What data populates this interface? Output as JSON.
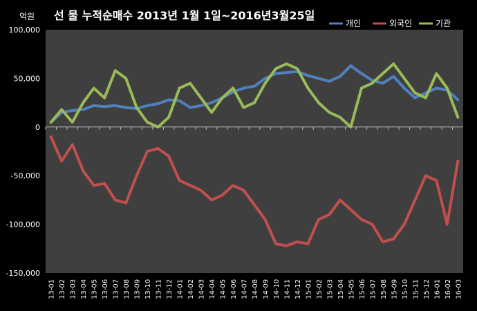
{
  "chart_data": {
    "type": "line",
    "title": "선 물 누적순매수 2013년 1월 1일~2016년3월25일",
    "ylabel": "억원",
    "xlabel": "",
    "ylim": [
      -150000,
      100000
    ],
    "yticks": [
      100000,
      50000,
      0,
      -50000,
      -100000,
      -150000
    ],
    "ytick_labels": [
      "100,000",
      "50,000",
      "0",
      "-50,000",
      "-100,000",
      "-150,000"
    ],
    "x_tick_labels": [
      "13-01",
      "13-02",
      "13-03",
      "13-04",
      "13-05",
      "13-06",
      "13-07",
      "13-08",
      "13-09",
      "13-10",
      "13-11",
      "13-12",
      "14-01",
      "14-02",
      "14-03",
      "14-04",
      "14-05",
      "14-06",
      "14-07",
      "14-08",
      "14-09",
      "14-10",
      "14-11",
      "14-12",
      "15-01",
      "15-02",
      "15-03",
      "15-04",
      "15-05",
      "15-06",
      "15-07",
      "15-08",
      "15-09",
      "15-10",
      "15-11",
      "15-12",
      "16-01",
      "16-02",
      "16-03"
    ],
    "grid": "none",
    "legend_position": "top-right",
    "series": [
      {
        "name": "개인",
        "color": "#4F81BD",
        "values": [
          5000,
          15000,
          17000,
          18000,
          22000,
          21000,
          22000,
          20000,
          19000,
          22000,
          24000,
          28000,
          27000,
          20000,
          22000,
          25000,
          30000,
          36000,
          40000,
          42000,
          50000,
          55000,
          56000,
          57000,
          53000,
          50000,
          47000,
          52000,
          63000,
          55000,
          48000,
          45000,
          52000,
          40000,
          30000,
          35000,
          40000,
          38000,
          28000
        ]
      },
      {
        "name": "외국인",
        "color": "#C0504D",
        "values": [
          -10000,
          -35000,
          -18000,
          -45000,
          -60000,
          -58000,
          -75000,
          -78000,
          -50000,
          -25000,
          -22000,
          -30000,
          -55000,
          -60000,
          -65000,
          -75000,
          -70000,
          -60000,
          -65000,
          -80000,
          -95000,
          -120000,
          -122000,
          -118000,
          -120000,
          -95000,
          -90000,
          -75000,
          -85000,
          -95000,
          -100000,
          -118000,
          -115000,
          -100000,
          -75000,
          -50000,
          -55000,
          -100000,
          -35000
        ]
      },
      {
        "name": "기관",
        "color": "#9BBB59",
        "values": [
          5000,
          18000,
          5000,
          25000,
          40000,
          30000,
          58000,
          50000,
          20000,
          5000,
          0,
          10000,
          40000,
          45000,
          30000,
          15000,
          30000,
          40000,
          20000,
          25000,
          45000,
          60000,
          65000,
          60000,
          40000,
          25000,
          15000,
          10000,
          0,
          40000,
          45000,
          55000,
          65000,
          50000,
          35000,
          30000,
          55000,
          40000,
          10000
        ]
      }
    ]
  }
}
